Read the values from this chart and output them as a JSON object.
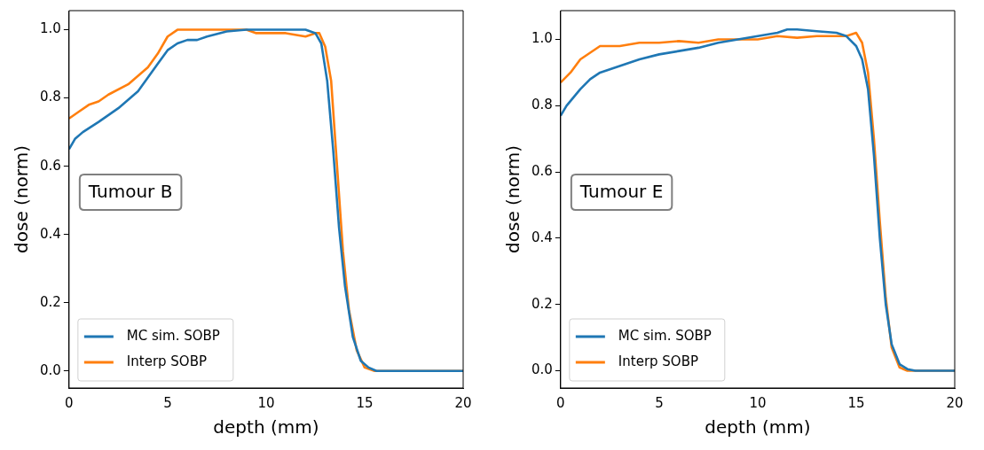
{
  "chart_data": [
    {
      "type": "line",
      "xlabel": "depth (mm)",
      "ylabel": "dose (norm)",
      "annotations": [
        "Tumour B"
      ],
      "legend": "bottom left",
      "xlim": [
        0,
        20
      ],
      "ylim": [
        -0.05,
        1.056
      ],
      "xticks": [
        0,
        5,
        10,
        15,
        20
      ],
      "yticks": [
        {
          "value": 0,
          "label": "0.0"
        },
        {
          "value": 0.2,
          "label": "0.2"
        },
        {
          "value": 0.4,
          "label": "0.4"
        },
        {
          "value": 0.6,
          "label": "0.6"
        },
        {
          "value": 0.8,
          "label": "0.8"
        },
        {
          "value": 1,
          "label": "1.0"
        }
      ],
      "series": [
        {
          "name": "MC sim. SOBP",
          "color": "#1f77b4",
          "x": [
            0,
            0.3,
            0.7,
            1.5,
            2.5,
            3.5,
            4.5,
            5,
            5.5,
            6,
            6.5,
            7,
            8,
            9,
            10,
            11,
            12,
            12.5,
            12.8,
            13.1,
            13.4,
            13.7,
            14,
            14.4,
            14.8,
            15.2,
            15.6,
            20
          ],
          "values": [
            0.65,
            0.68,
            0.7,
            0.73,
            0.77,
            0.82,
            0.9,
            0.94,
            0.96,
            0.97,
            0.97,
            0.98,
            0.995,
            1,
            1,
            1,
            1,
            0.99,
            0.96,
            0.85,
            0.65,
            0.42,
            0.25,
            0.1,
            0.03,
            0.01,
            0,
            0
          ]
        },
        {
          "name": "Interp SOBP",
          "color": "#ff7f0e",
          "x": [
            0,
            0.5,
            1,
            1.5,
            2,
            3,
            4,
            4.5,
            5,
            5.5,
            6,
            7,
            8,
            9,
            9.5,
            10,
            11,
            12,
            12.5,
            12.7,
            13,
            13.3,
            13.6,
            13.9,
            14.2,
            14.6,
            15,
            15.5,
            20
          ],
          "values": [
            0.74,
            0.76,
            0.78,
            0.79,
            0.81,
            0.84,
            0.89,
            0.93,
            0.98,
            1,
            1,
            1,
            1,
            1,
            0.99,
            0.99,
            0.99,
            0.98,
            0.99,
            0.99,
            0.95,
            0.85,
            0.6,
            0.35,
            0.18,
            0.06,
            0.01,
            0,
            0
          ]
        }
      ]
    },
    {
      "type": "line",
      "xlabel": "depth (mm)",
      "ylabel": "dose (norm)",
      "annotations": [
        "Tumour E"
      ],
      "legend": "bottom left",
      "xlim": [
        0,
        20
      ],
      "ylim": [
        -0.052,
        1.087
      ],
      "xticks": [
        0,
        5,
        10,
        15,
        20
      ],
      "yticks": [
        {
          "value": 0,
          "label": "0.0"
        },
        {
          "value": 0.2,
          "label": "0.2"
        },
        {
          "value": 0.4,
          "label": "0.4"
        },
        {
          "value": 0.6,
          "label": "0.6"
        },
        {
          "value": 0.8,
          "label": "0.8"
        },
        {
          "value": 1,
          "label": "1.0"
        }
      ],
      "series": [
        {
          "name": "MC sim. SOBP",
          "color": "#1f77b4",
          "x": [
            0,
            0.3,
            1,
            1.5,
            2,
            3,
            4,
            5,
            6,
            7,
            8,
            9,
            10,
            11,
            11.5,
            12,
            13,
            14,
            14.5,
            15,
            15.3,
            15.6,
            15.9,
            16.2,
            16.5,
            16.8,
            17.2,
            17.6,
            18,
            20
          ],
          "values": [
            0.77,
            0.8,
            0.85,
            0.88,
            0.9,
            0.92,
            0.94,
            0.955,
            0.965,
            0.975,
            0.99,
            1,
            1.01,
            1.02,
            1.03,
            1.03,
            1.025,
            1.02,
            1.01,
            0.98,
            0.94,
            0.85,
            0.65,
            0.4,
            0.2,
            0.08,
            0.02,
            0.005,
            0,
            0
          ]
        },
        {
          "name": "Interp SOBP",
          "color": "#ff7f0e",
          "x": [
            0,
            0.5,
            1,
            1.5,
            2,
            3,
            4,
            5,
            6,
            7,
            8,
            9,
            10,
            11,
            12,
            13,
            14,
            14.5,
            15,
            15.3,
            15.6,
            15.9,
            16.2,
            16.5,
            16.8,
            17.2,
            17.6,
            20
          ],
          "values": [
            0.87,
            0.9,
            0.94,
            0.96,
            0.98,
            0.98,
            0.99,
            0.99,
            0.995,
            0.99,
            1,
            1,
            1,
            1.01,
            1.005,
            1.01,
            1.01,
            1.01,
            1.02,
            0.99,
            0.9,
            0.7,
            0.45,
            0.22,
            0.07,
            0.01,
            0,
            0
          ]
        }
      ]
    }
  ]
}
